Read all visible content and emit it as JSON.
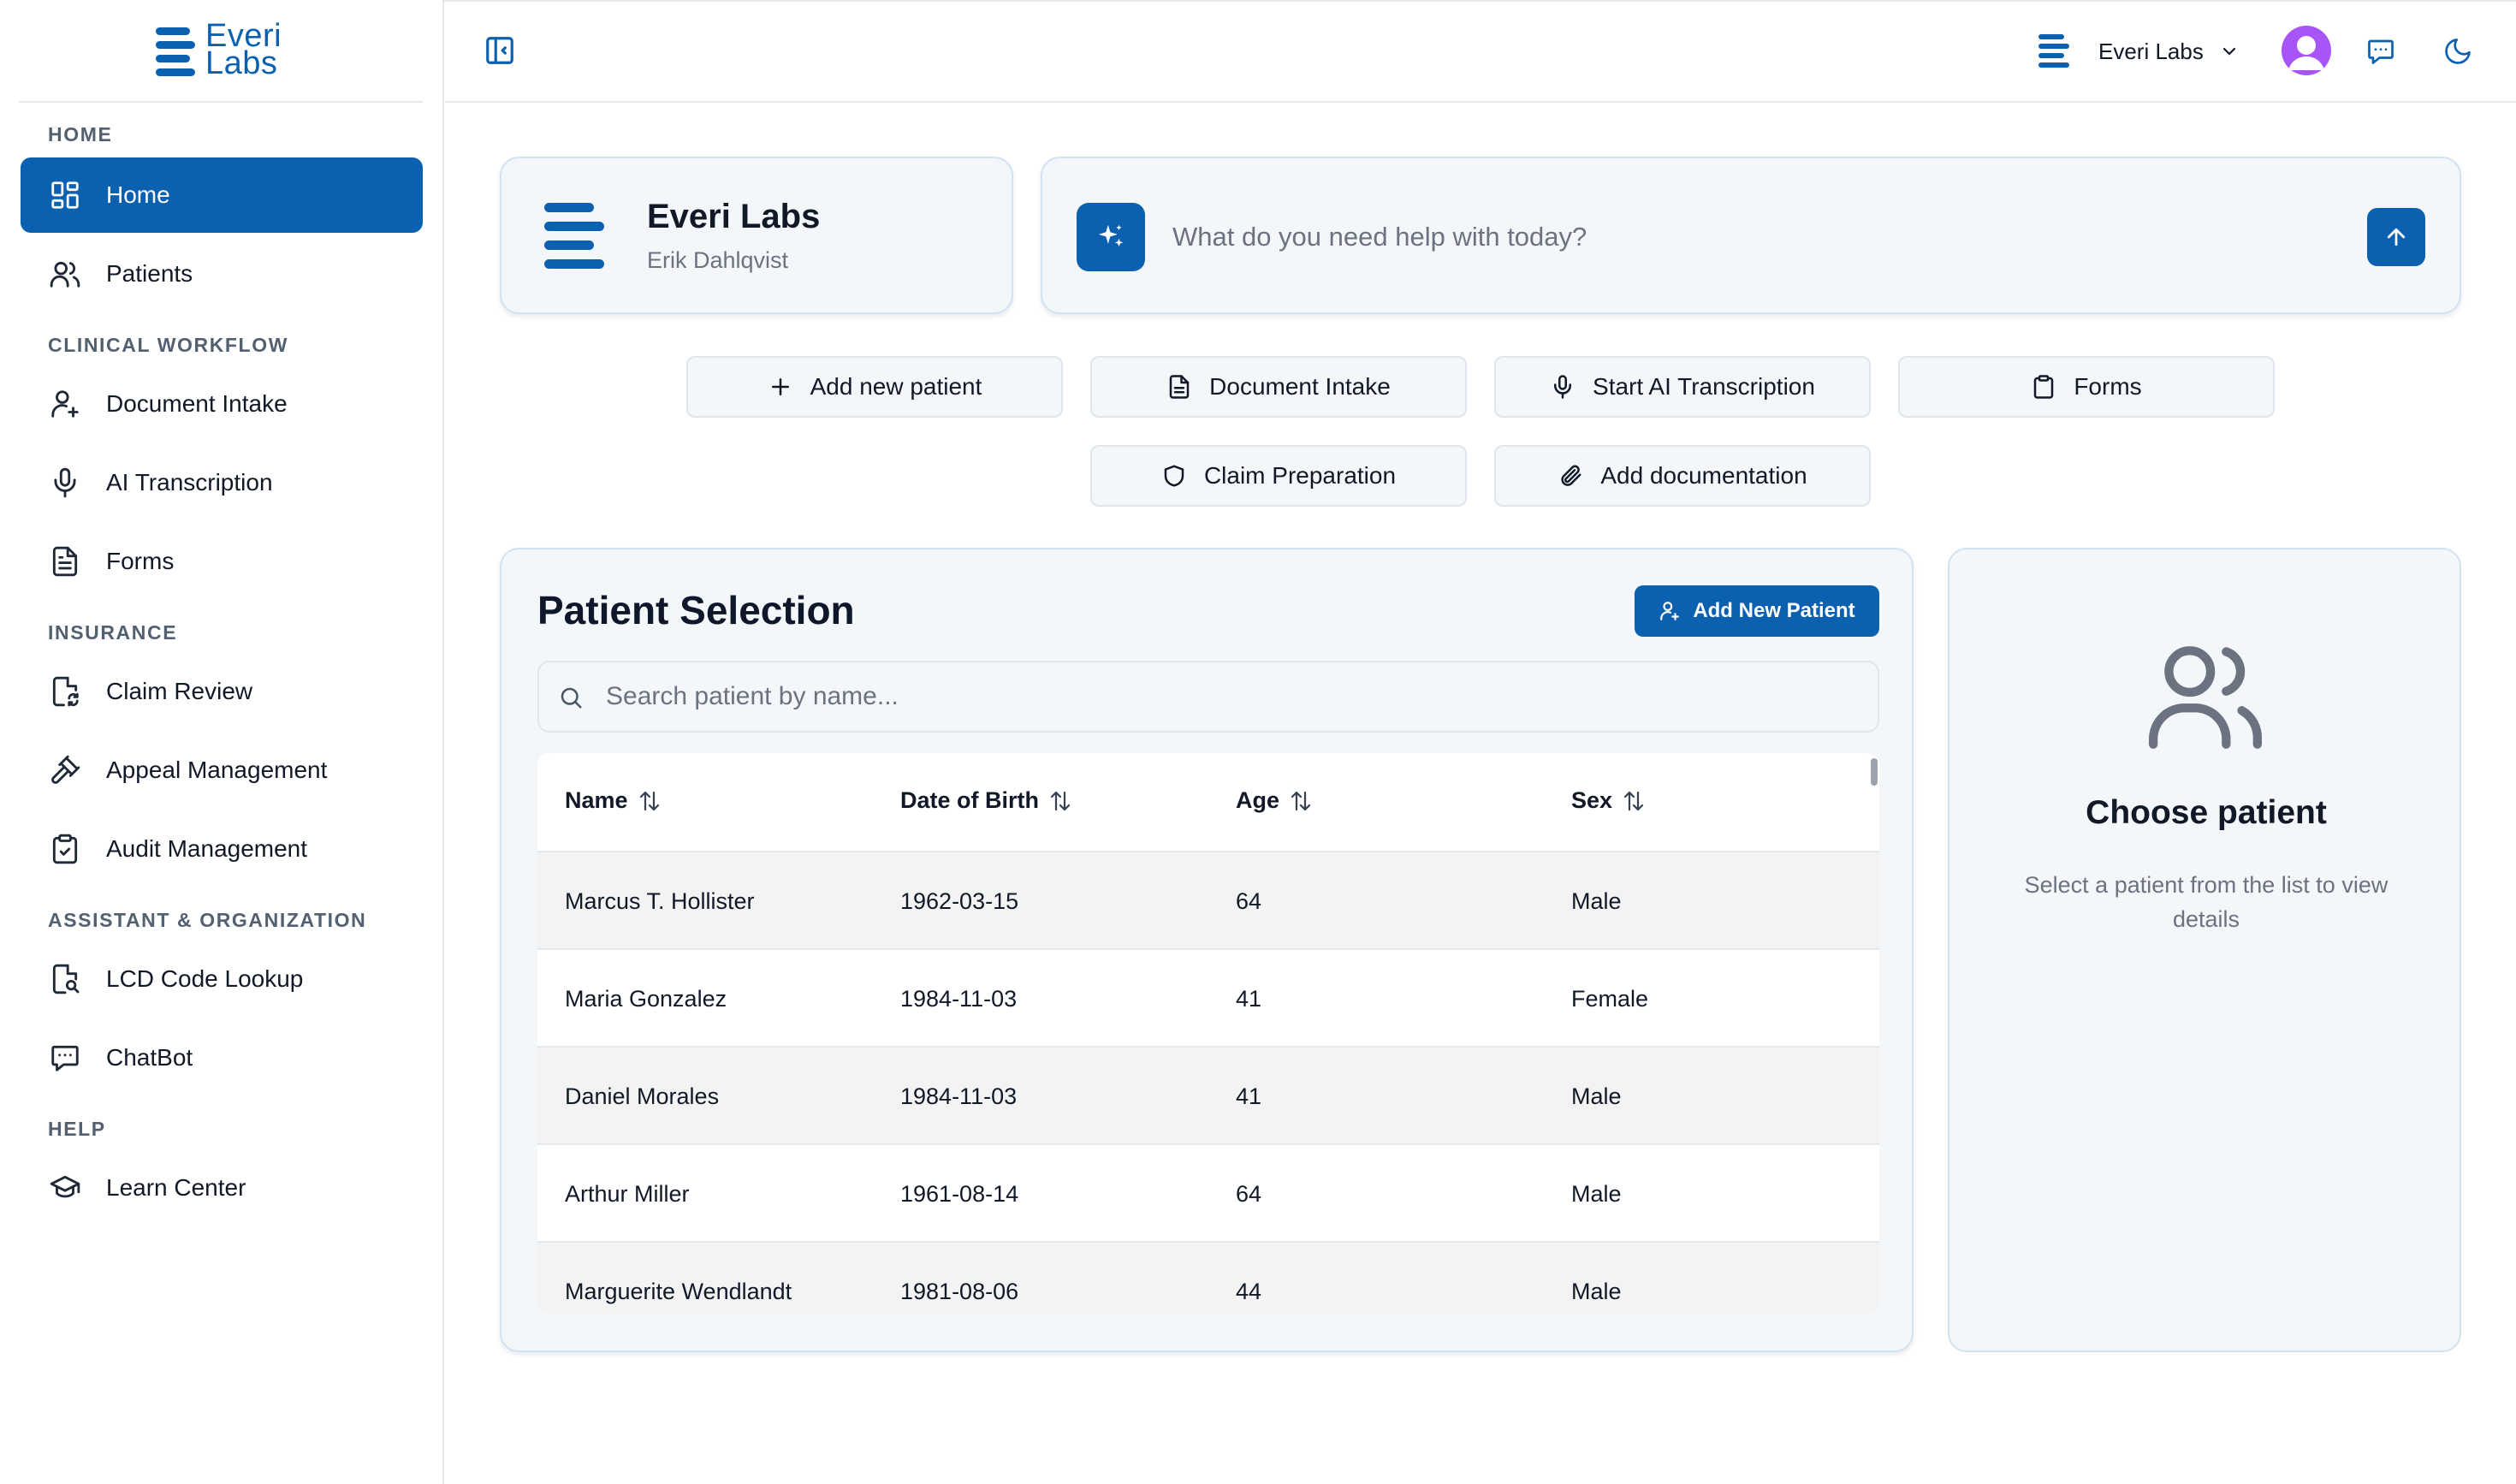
{
  "brand": {
    "line1": "Everi",
    "line2": "Labs",
    "color": "#0b61b0"
  },
  "sidebar": {
    "sections": [
      {
        "label": "HOME"
      },
      {
        "label": "CLINICAL WORKFLOW"
      },
      {
        "label": "INSURANCE"
      },
      {
        "label": "ASSISTANT & ORGANIZATION"
      },
      {
        "label": "HELP"
      }
    ],
    "items": [
      {
        "label": "Home",
        "icon": "grid-icon",
        "active": true
      },
      {
        "label": "Patients",
        "icon": "users-icon"
      },
      {
        "label": "Document Intake",
        "icon": "user-plus-icon"
      },
      {
        "label": "AI Transcription",
        "icon": "microphone-icon"
      },
      {
        "label": "Forms",
        "icon": "file-text-icon"
      },
      {
        "label": "Claim Review",
        "icon": "file-refresh-icon"
      },
      {
        "label": "Appeal Management",
        "icon": "gavel-icon"
      },
      {
        "label": "Audit Management",
        "icon": "clipboard-check-icon"
      },
      {
        "label": "LCD Code Lookup",
        "icon": "file-search-icon"
      },
      {
        "label": "ChatBot",
        "icon": "message-icon"
      },
      {
        "label": "Learn Center",
        "icon": "graduation-cap-icon"
      }
    ]
  },
  "header": {
    "org_name": "Everi Labs"
  },
  "org_card": {
    "title": "Everi Labs",
    "subtitle": "Erik Dahlqvist"
  },
  "assistant": {
    "placeholder": "What do you need help with today?"
  },
  "quick_actions": [
    {
      "label": "Add new patient",
      "icon": "plus-icon"
    },
    {
      "label": "Document Intake",
      "icon": "document-icon"
    },
    {
      "label": "Start AI Transcription",
      "icon": "microphone-icon"
    },
    {
      "label": "Forms",
      "icon": "clipboard-icon"
    },
    {
      "label": "Claim Preparation",
      "icon": "shield-icon"
    },
    {
      "label": "Add documentation",
      "icon": "paperclip-icon"
    }
  ],
  "patient_selection": {
    "title": "Patient Selection",
    "add_button": "Add New Patient",
    "search_placeholder": "Search patient by name...",
    "columns": [
      "Name",
      "Date of Birth",
      "Age",
      "Sex"
    ],
    "rows": [
      [
        "Marcus T. Hollister",
        "1962-03-15",
        "64",
        "Male"
      ],
      [
        "Maria Gonzalez",
        "1984-11-03",
        "41",
        "Female"
      ],
      [
        "Daniel Morales",
        "1984-11-03",
        "41",
        "Male"
      ],
      [
        "Arthur Miller",
        "1961-08-14",
        "64",
        "Male"
      ],
      [
        "Marguerite Wendlandt",
        "1981-08-06",
        "44",
        "Male"
      ]
    ]
  },
  "choose_patient": {
    "title": "Choose patient",
    "description": "Select a patient from the list to view details"
  }
}
